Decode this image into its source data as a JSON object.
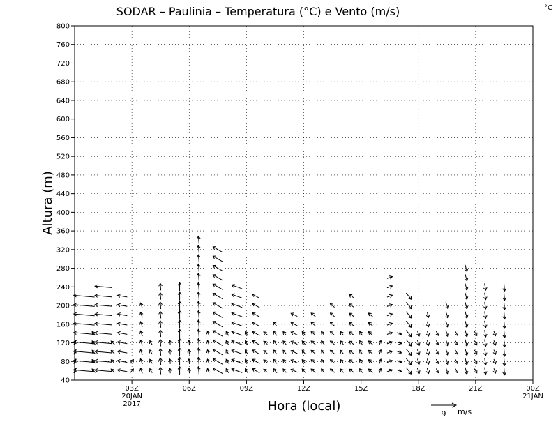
{
  "chart_data": {
    "type": "vector-field",
    "title": "SODAR – Paulinia – Temperatura (°C) e Vento (m/s)",
    "corner_unit": "°C",
    "xlabel": "Hora (local)",
    "ylabel": "Altura (m)",
    "ylim": [
      40,
      800
    ],
    "yticks": [
      40,
      80,
      120,
      160,
      200,
      240,
      280,
      320,
      360,
      400,
      440,
      480,
      520,
      560,
      600,
      640,
      680,
      720,
      760,
      800
    ],
    "xlim_hours": [
      0,
      24
    ],
    "xticks": [
      {
        "hour": 3,
        "label": "03Z",
        "sub1": "20JAN",
        "sub2": "2017"
      },
      {
        "hour": 6,
        "label": "06Z",
        "sub1": "",
        "sub2": ""
      },
      {
        "hour": 9,
        "label": "09Z",
        "sub1": "",
        "sub2": ""
      },
      {
        "hour": 12,
        "label": "12Z",
        "sub1": "",
        "sub2": ""
      },
      {
        "hour": 15,
        "label": "15Z",
        "sub1": "",
        "sub2": ""
      },
      {
        "hour": 18,
        "label": "18Z",
        "sub1": "",
        "sub2": ""
      },
      {
        "hour": 21,
        "label": "21Z",
        "sub1": "",
        "sub2": ""
      },
      {
        "hour": 24,
        "label": "00Z",
        "sub1": "21JAN",
        "sub2": ""
      }
    ],
    "grid": "dotted",
    "reference_vector": {
      "speed": 9,
      "unit": "m/s",
      "label": "9",
      "unit_label": "m/s"
    },
    "heights": [
      60,
      80,
      100,
      120,
      140,
      160,
      180,
      200,
      220,
      240,
      260,
      280,
      300,
      320,
      340
    ],
    "columns": [
      {
        "hour": 0.0,
        "max_h": 120,
        "dir": 200,
        "speed": 1.5
      },
      {
        "hour": 0.5,
        "max_h": 220,
        "dir": 95,
        "speed": 7.5
      },
      {
        "hour": 1.0,
        "max_h": 140,
        "dir": 140,
        "speed": 1.5
      },
      {
        "hour": 1.5,
        "max_h": 240,
        "dir": 95,
        "speed": 6.0
      },
      {
        "hour": 2.0,
        "max_h": 120,
        "dir": 135,
        "speed": 1.5
      },
      {
        "hour": 2.5,
        "max_h": 220,
        "dir": 100,
        "speed": 3.5
      },
      {
        "hour": 3.0,
        "max_h": 80,
        "dir": 220,
        "speed": 1.5
      },
      {
        "hour": 3.5,
        "max_h": 200,
        "dir": 160,
        "speed": 2.0
      },
      {
        "hour": 4.0,
        "max_h": 120,
        "dir": 150,
        "speed": 1.5
      },
      {
        "hour": 4.5,
        "max_h": 240,
        "dir": 175,
        "speed": 2.5
      },
      {
        "hour": 5.0,
        "max_h": 120,
        "dir": 175,
        "speed": 1.5
      },
      {
        "hour": 5.5,
        "max_h": 240,
        "dir": 180,
        "speed": 3.0
      },
      {
        "hour": 6.0,
        "max_h": 120,
        "dir": 175,
        "speed": 1.8
      },
      {
        "hour": 6.5,
        "max_h": 340,
        "dir": 175,
        "speed": 3.0
      },
      {
        "hour": 7.0,
        "max_h": 140,
        "dir": 160,
        "speed": 1.5
      },
      {
        "hour": 7.5,
        "max_h": 320,
        "dir": 120,
        "speed": 4.0
      },
      {
        "hour": 8.0,
        "max_h": 140,
        "dir": 150,
        "speed": 1.5
      },
      {
        "hour": 8.5,
        "max_h": 240,
        "dir": 110,
        "speed": 4.0
      },
      {
        "hour": 9.0,
        "max_h": 140,
        "dir": 150,
        "speed": 1.5
      },
      {
        "hour": 9.5,
        "max_h": 220,
        "dir": 120,
        "speed": 3.0
      },
      {
        "hour": 10.0,
        "max_h": 140,
        "dir": 130,
        "speed": 1.5
      },
      {
        "hour": 10.5,
        "max_h": 160,
        "dir": 140,
        "speed": 2.0
      },
      {
        "hour": 11.0,
        "max_h": 140,
        "dir": 140,
        "speed": 1.5
      },
      {
        "hour": 11.5,
        "max_h": 180,
        "dir": 115,
        "speed": 2.5
      },
      {
        "hour": 12.0,
        "max_h": 140,
        "dir": 140,
        "speed": 1.5
      },
      {
        "hour": 12.5,
        "max_h": 180,
        "dir": 130,
        "speed": 2.0
      },
      {
        "hour": 13.0,
        "max_h": 140,
        "dir": 140,
        "speed": 1.5
      },
      {
        "hour": 13.5,
        "max_h": 200,
        "dir": 130,
        "speed": 2.0
      },
      {
        "hour": 14.0,
        "max_h": 140,
        "dir": 140,
        "speed": 1.5
      },
      {
        "hour": 14.5,
        "max_h": 220,
        "dir": 125,
        "speed": 2.0
      },
      {
        "hour": 15.0,
        "max_h": 140,
        "dir": 145,
        "speed": 1.5
      },
      {
        "hour": 15.5,
        "max_h": 180,
        "dir": 130,
        "speed": 2.0
      },
      {
        "hour": 16.0,
        "max_h": 120,
        "dir": 200,
        "speed": 1.5
      },
      {
        "hour": 16.5,
        "max_h": 260,
        "dir": 250,
        "speed": 2.0
      },
      {
        "hour": 17.0,
        "max_h": 140,
        "dir": 290,
        "speed": 1.5
      },
      {
        "hour": 17.5,
        "max_h": 220,
        "dir": 320,
        "speed": 3.0
      },
      {
        "hour": 18.0,
        "max_h": 140,
        "dir": 340,
        "speed": 2.0
      },
      {
        "hour": 18.5,
        "max_h": 180,
        "dir": 345,
        "speed": 2.0
      },
      {
        "hour": 19.0,
        "max_h": 140,
        "dir": 330,
        "speed": 1.8
      },
      {
        "hour": 19.5,
        "max_h": 200,
        "dir": 340,
        "speed": 2.5
      },
      {
        "hour": 20.0,
        "max_h": 140,
        "dir": 330,
        "speed": 1.8
      },
      {
        "hour": 20.5,
        "max_h": 280,
        "dir": 345,
        "speed": 2.5
      },
      {
        "hour": 21.0,
        "max_h": 140,
        "dir": 330,
        "speed": 1.8
      },
      {
        "hour": 21.5,
        "max_h": 240,
        "dir": 350,
        "speed": 2.5
      },
      {
        "hour": 22.0,
        "max_h": 140,
        "dir": 340,
        "speed": 1.8
      },
      {
        "hour": 22.5,
        "max_h": 240,
        "dir": 355,
        "speed": 3.0
      }
    ]
  }
}
